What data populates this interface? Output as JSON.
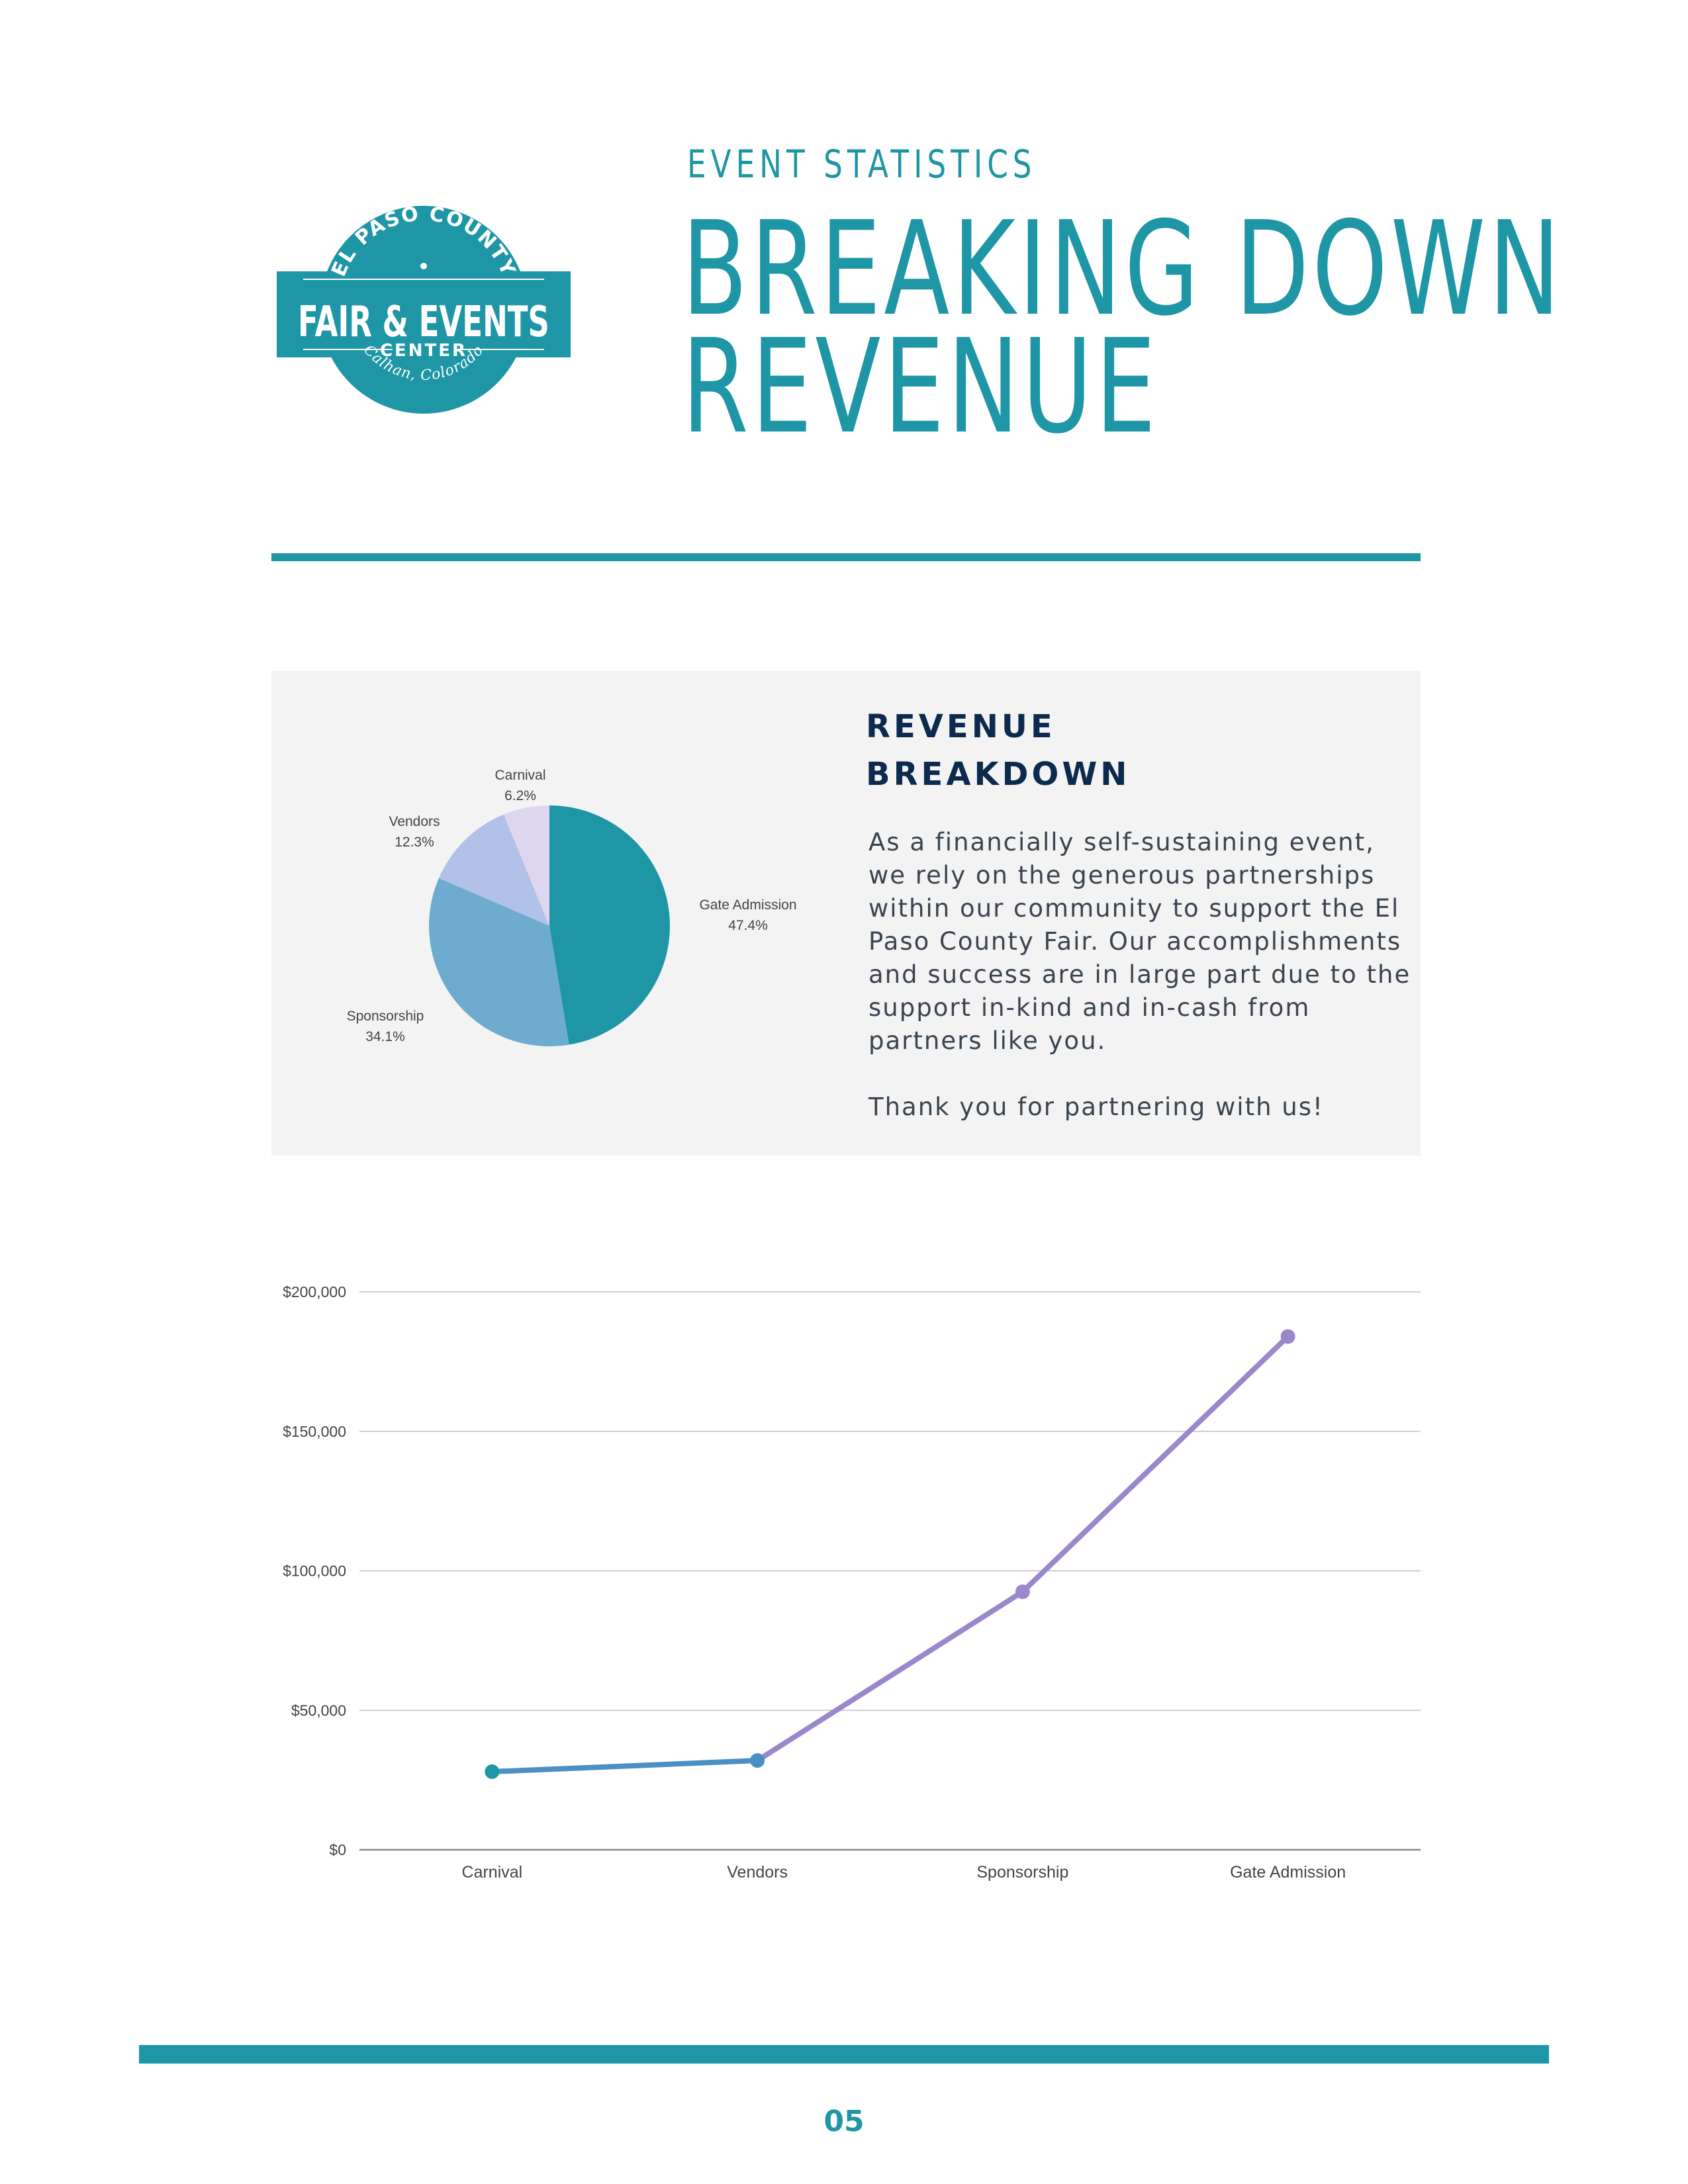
{
  "logo": {
    "arc_top": "EL PASO COUNTY",
    "main": "FAIR & EVENTS",
    "sub": "CENTER",
    "arc_bottom": "Calhan, Colorado"
  },
  "header": {
    "eyebrow": "EVENT STATISTICS",
    "title_line1": "BREAKING DOWN",
    "title_line2": "REVENUE"
  },
  "breakdown": {
    "title_line1": "REVENUE",
    "title_line2": "BREAKDOWN",
    "body": "As a financially self-sustaining event, we rely on the generous partnerships within our community to support the El Paso County Fair.  Our accomplishments and success are in large part due to the support in-kind and in-cash from partners like you.",
    "thanks": "Thank you for partnering with us!"
  },
  "colors": {
    "accent": "#1e96a5",
    "navy": "#0b2a4e",
    "line_blue": "#4a90c4",
    "line_purple": "#9b87cc"
  },
  "chart_data": [
    {
      "type": "pie",
      "title": "",
      "slices": [
        {
          "label": "Gate Admission",
          "pct_label": "47.4%",
          "value": 47.4,
          "color": "#1e96a5"
        },
        {
          "label": "Sponsorship",
          "pct_label": "34.1%",
          "value": 34.1,
          "color": "#6eaccf"
        },
        {
          "label": "Vendors",
          "pct_label": "12.3%",
          "value": 12.3,
          "color": "#b1c1e7"
        },
        {
          "label": "Carnival",
          "pct_label": "6.2%",
          "value": 6.2,
          "color": "#ddd6ee"
        }
      ]
    },
    {
      "type": "line",
      "title": "",
      "xlabel": "",
      "ylabel": "",
      "categories": [
        "Carnival",
        "Vendors",
        "Sponsorship",
        "Gate Admission"
      ],
      "values": [
        28000,
        32000,
        92500,
        184000
      ],
      "point_colors": [
        "#1e96a5",
        "#4a90c4",
        "#9b87cc",
        "#9b87cc"
      ],
      "ylim": [
        0,
        200000
      ],
      "yticks": [
        0,
        50000,
        100000,
        150000,
        200000
      ],
      "ytick_labels": [
        "$0",
        "$50,000",
        "$100,000",
        "$150,000",
        "$200,000"
      ],
      "grid": true
    }
  ],
  "footer": {
    "page_number": "05"
  }
}
